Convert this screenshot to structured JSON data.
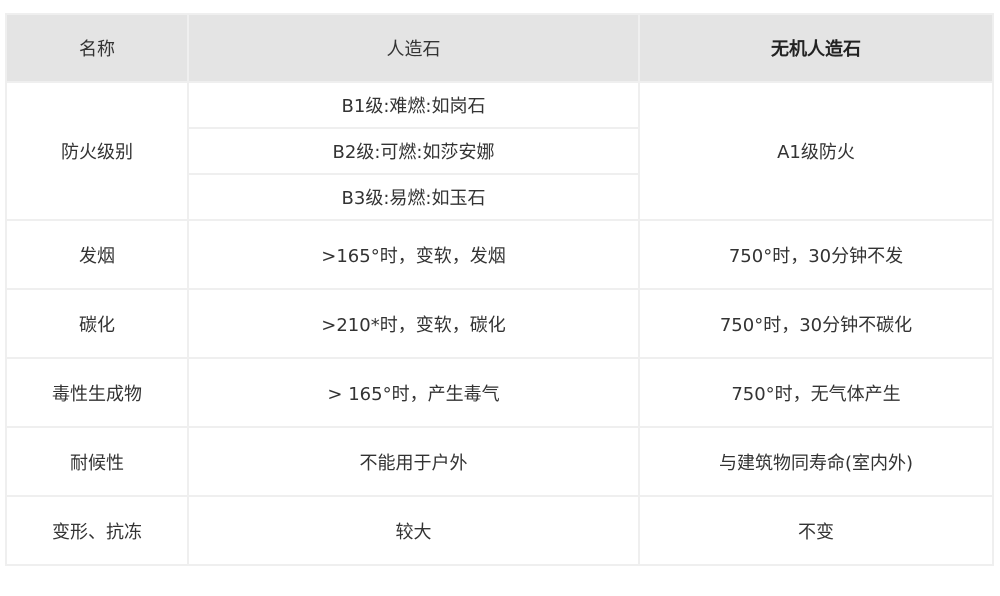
{
  "header": {
    "name": "名称",
    "artificial": "人造石",
    "inorganic": "无机人造石"
  },
  "fire_rating": {
    "label": "防火级别",
    "artificial": [
      "B1级:难燃:如岗石",
      "B2级:可燃:如莎安娜",
      "B3级:易燃:如玉石"
    ],
    "inorganic": "A1级防火"
  },
  "rows": [
    {
      "name": "发烟",
      "artificial": ">165°时，变软，发烟",
      "inorganic": "750°时，30分钟不发"
    },
    {
      "name": "碳化",
      "artificial": ">210*时，变软，碳化",
      "inorganic": "750°时，30分钟不碳化"
    },
    {
      "name": "毒性生成物",
      "artificial": "> 165°时，产生毒气",
      "inorganic": "750°时，无气体产生"
    },
    {
      "name": "耐候性",
      "artificial": "不能用于户外",
      "inorganic": "与建筑物同寿命(室内外)"
    },
    {
      "name": "变形、抗冻",
      "artificial": "较大",
      "inorganic": "不变"
    }
  ]
}
